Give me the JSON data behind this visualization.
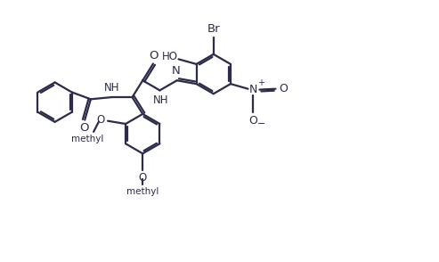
{
  "bg": "#ffffff",
  "lc": "#2c2c4a",
  "lw": 1.6,
  "fw": 4.93,
  "fh": 2.94,
  "dpi": 100,
  "xl": [
    0,
    10.0
  ],
  "yl": [
    -0.3,
    6.0
  ]
}
